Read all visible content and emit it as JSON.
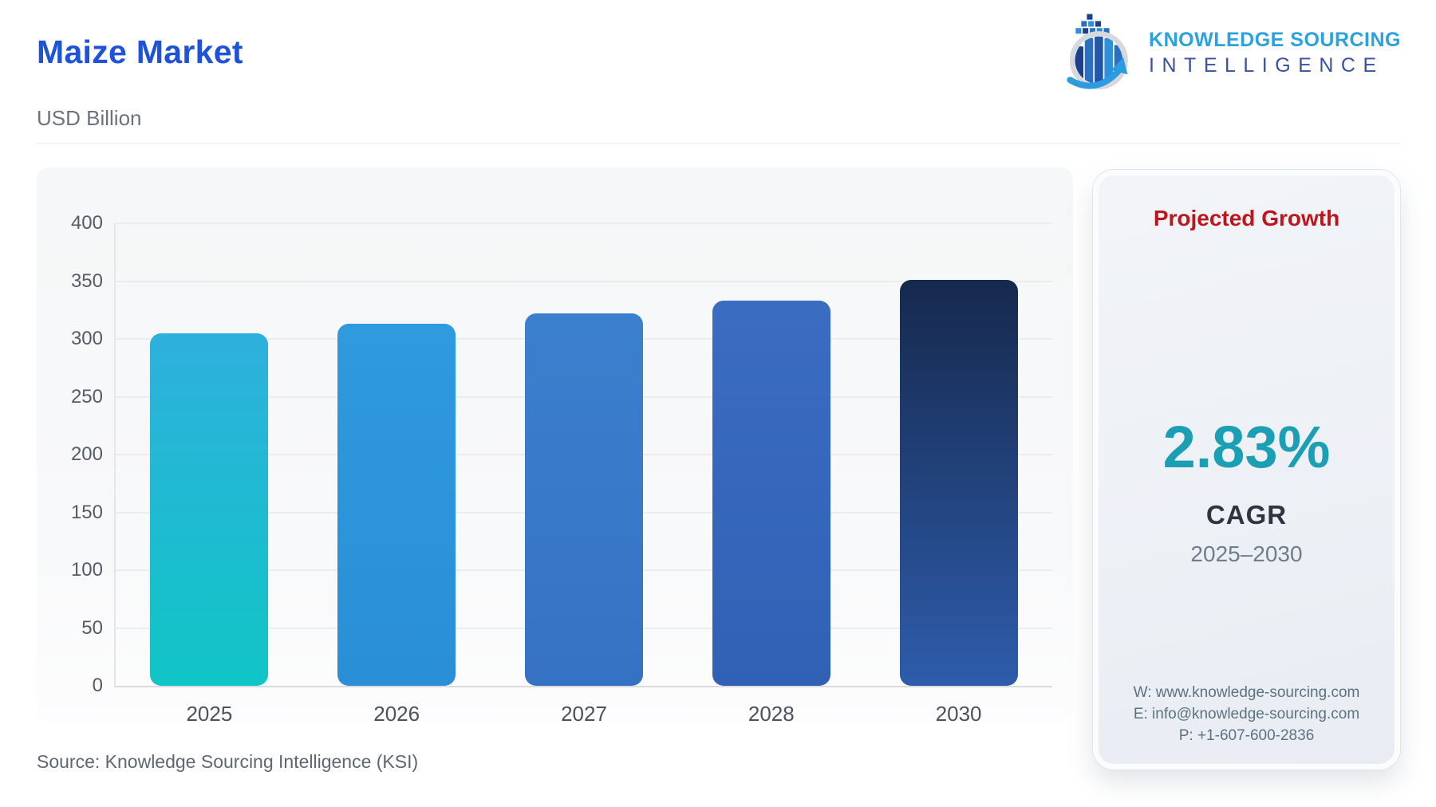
{
  "header": {
    "title": "Maize Market",
    "units": "USD Billion"
  },
  "logo": {
    "icon": "bar-chart-globe-arrow-icon",
    "line1": "KNOWLEDGE SOURCING",
    "line2": "INTELLIGENCE",
    "line1_color": "#2aa2df",
    "line2_color": "#3b509f"
  },
  "growth_card": {
    "heading": "Projected Growth",
    "heading_color": "#c0141c",
    "value": "2.83%",
    "value_color": "#1b9fb4",
    "label": "CAGR",
    "period": "2025–2030",
    "contact": {
      "website": "W: www.knowledge-sourcing.com",
      "email": "E: info@knowledge-sourcing.com",
      "phone": "P: +1-607-600-2836"
    }
  },
  "footer": {
    "source": "Source: Knowledge Sourcing Intelligence (KSI)"
  },
  "chart_data": {
    "type": "bar",
    "title": "Maize Market",
    "xlabel": "",
    "ylabel": "USD Billion",
    "categories": [
      "2025",
      "2026",
      "2027",
      "2028",
      "2030"
    ],
    "values": [
      305,
      313,
      322,
      333,
      351
    ],
    "ylim": [
      0,
      400
    ],
    "yticks": [
      0,
      50,
      100,
      150,
      200,
      250,
      300,
      350,
      400
    ],
    "grid": true,
    "legend": false,
    "bar_gradients": [
      [
        "#2eb0dd",
        "#10c5c6"
      ],
      [
        "#2f9ade",
        "#2a8fd6"
      ],
      [
        "#3b80ce",
        "#3672c4"
      ],
      [
        "#3a6cc2",
        "#3061b5"
      ],
      [
        "#16294d",
        "#2e5cab"
      ]
    ]
  }
}
